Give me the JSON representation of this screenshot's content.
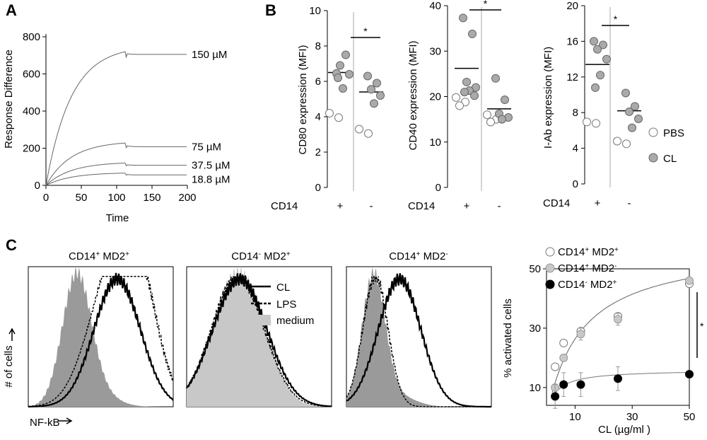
{
  "panels": {
    "a": "A",
    "b": "B",
    "c": "C"
  },
  "chart_data": [
    {
      "id": "A",
      "type": "line",
      "xlabel": "Time",
      "ylabel": "Response Difference",
      "xlim": [
        0,
        200
      ],
      "ylim": [
        0,
        800
      ],
      "xticks": [
        "0",
        "50",
        "100",
        "150",
        "200"
      ],
      "yticks": [
        "0",
        "200",
        "400",
        "600",
        "800"
      ],
      "injection_end": 112,
      "series": [
        {
          "label": "150 µM",
          "plateau": 720,
          "dissociated": 705
        },
        {
          "label": "75 µM",
          "plateau": 228,
          "dissociated": 208
        },
        {
          "label": "37.5 µM",
          "plateau": 120,
          "dissociated": 108
        },
        {
          "label": "18.8 µM",
          "plateau": 66,
          "dissociated": 56
        }
      ]
    },
    {
      "id": "B1",
      "type": "scatter",
      "ylabel": "CD80 expression (MFI)",
      "ylim": [
        0,
        10
      ],
      "yticks": [
        "0",
        "2",
        "4",
        "6",
        "8",
        "10"
      ],
      "group_label": "CD14",
      "groups": [
        "+",
        "-"
      ],
      "significance": "*",
      "points": {
        "plus_pbs": [
          4.2,
          3.95
        ],
        "plus_cl": [
          6.45,
          7.5,
          6.9,
          6.4,
          5.6,
          6.2
        ],
        "minus_pbs": [
          3.3,
          3.05
        ],
        "minus_cl": [
          6.3,
          5.9,
          5.55,
          5.2,
          4.75
        ]
      },
      "means": {
        "plus": 6.5,
        "minus": 5.4
      }
    },
    {
      "id": "B2",
      "type": "scatter",
      "ylabel": "CD40 expression (MFI)",
      "ylim": [
        0,
        40
      ],
      "yticks": [
        "0",
        "10",
        "20",
        "30",
        "40"
      ],
      "group_label": "CD14",
      "groups": [
        "+",
        "-"
      ],
      "significance": "*",
      "points": {
        "plus_pbs": [
          19.8,
          18.8,
          18.0
        ],
        "plus_cl": [
          37.3,
          33.8,
          23.2,
          22.0,
          21.3,
          21.0,
          20.2
        ],
        "minus_pbs": [
          16.0,
          15.0,
          14.4
        ],
        "minus_cl": [
          24.0,
          19.3,
          16.2,
          15.4,
          15.0
        ]
      },
      "means": {
        "plus": 26.2,
        "minus": 17.3
      }
    },
    {
      "id": "B3",
      "type": "scatter",
      "ylabel": "I-Ab expression (MFI)",
      "ylim": [
        0,
        20
      ],
      "yticks": [
        "0",
        "4",
        "8",
        "12",
        "16",
        "20"
      ],
      "group_label": "CD14",
      "groups": [
        "+",
        "-"
      ],
      "significance": "*",
      "legend": [
        "PBS",
        "CL"
      ],
      "points": {
        "plus_pbs": [
          6.95,
          6.8
        ],
        "plus_cl": [
          16.0,
          15.6,
          15.1,
          14.0,
          12.2,
          10.8
        ],
        "minus_pbs": [
          4.8,
          4.5
        ],
        "minus_cl": [
          10.2,
          8.7,
          8.1,
          7.3,
          6.3
        ]
      },
      "means": {
        "plus": 13.4,
        "minus": 8.2
      }
    },
    {
      "id": "C-hist",
      "type": "area",
      "xlabel": "NF-kB",
      "ylabel": "# of cells",
      "legend": [
        "CL",
        "LPS",
        "medium"
      ],
      "histograms": [
        {
          "title_a": "CD14",
          "sup_a": "+",
          "title_b": " MD2",
          "sup_b": "+",
          "medium_peak": 0.14,
          "cl_peak": 0.29,
          "lps_peak": 0.38
        },
        {
          "title_a": "CD14",
          "sup_a": "-",
          "title_b": " MD2",
          "sup_b": "+",
          "medium_peak": 0.26,
          "cl_peak": 0.28,
          "lps_peak": 0.28
        },
        {
          "title_a": "CD14",
          "sup_a": "+",
          "title_b": " MD2",
          "sup_b": "-",
          "medium_peak": 0.17,
          "cl_peak": 0.44,
          "lps_peak": 0.18
        }
      ]
    },
    {
      "id": "C-dose",
      "type": "scatter",
      "xlabel": "CL (µg/ml )",
      "ylabel": "% activated cells",
      "xlim": [
        0,
        50
      ],
      "ylim": [
        4,
        50
      ],
      "xticks": [
        "10",
        "30",
        "50"
      ],
      "yticks": [
        "10",
        "30",
        "50"
      ],
      "significance": "*",
      "x": [
        3,
        6,
        12,
        25,
        50
      ],
      "series": [
        {
          "name": "CD14 + MD2 +",
          "label_a": "CD14",
          "sup_a": "+",
          "label_b": " MD2",
          "sup_b": "+",
          "values": [
            17,
            25,
            29,
            34,
            45
          ],
          "errors": [
            0,
            0,
            0,
            0,
            0
          ]
        },
        {
          "name": "CD14 + MD2 -",
          "label_a": "CD14",
          "sup_a": "+",
          "label_b": " MD2",
          "sup_b": "-",
          "values": [
            10,
            20,
            28,
            33,
            46
          ],
          "errors": [
            0,
            0,
            2,
            2,
            0
          ]
        },
        {
          "name": "CD14 - MD2 +",
          "label_a": "CD14",
          "sup_a": "-",
          "label_b": " MD2",
          "sup_b": "+",
          "values": [
            7,
            11,
            11,
            13,
            14.5
          ],
          "errors": [
            4,
            4,
            4,
            4,
            0
          ]
        }
      ]
    }
  ]
}
